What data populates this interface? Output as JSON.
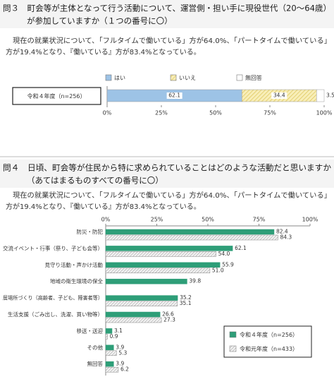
{
  "sections": [
    {
      "title_lines": [
        "問３　町会等が主体となって行う活動について、運営側・担い手に現役世代（20～64歳）",
        "が参加していますか（１つの番号に〇）"
      ],
      "text_lines": [
        "現在の就業状況について、「フルタイムで働いている」方が64.0%、「パートタイムで働いている」",
        "方が19.4%となり、『働いている』方が83.4%となっている。"
      ]
    },
    {
      "title_lines": [
        "問４　日頃、町会等が住民から特に求められていることはどのような活動だと思いますか",
        "（あてはまるものすべての番号に〇）"
      ],
      "text_lines": [
        "現在の就業状況について、「フルタイムで働いている」方が64.0%、「パートタイムで働いている」",
        "方が19.4%となり、『働いている』方が83.4%となっている。"
      ]
    }
  ],
  "chart_data": [
    {
      "type": "stacked_bar",
      "orientation": "horizontal",
      "categories": [
        "令和４年度（n=256）"
      ],
      "series": [
        {
          "name": "はい",
          "color": "#9dc3e6",
          "values": [
            62.1
          ]
        },
        {
          "name": "いいえ",
          "color": "#f3e08a",
          "pattern": "hatch",
          "values": [
            34.4
          ]
        },
        {
          "name": "無回答",
          "color": "#ffffff",
          "values": [
            3.5
          ]
        }
      ],
      "xlim": [
        0,
        100
      ],
      "xticks": [
        {
          "value": 0,
          "label": "0%"
        },
        {
          "value": 25,
          "label": "25%"
        },
        {
          "value": 50,
          "label": "50%"
        },
        {
          "value": 75,
          "label": "75%"
        },
        {
          "value": 100,
          "label": "100%"
        }
      ],
      "legend": "top"
    },
    {
      "type": "bar",
      "orientation": "horizontal",
      "categories": [
        "防災・防犯",
        "交流イベント・行事（祭り、子ども会等）",
        "見守り活動・声かけ活動",
        "地域の衛生環境の保全",
        "居場所づくり（高齢者、子ども、障害者等）",
        "生活支援（ごみ出し、洗濯、買い物等）",
        "移送・送迎",
        "その他",
        "無回答"
      ],
      "series": [
        {
          "name": "令和４年度（n=256）",
          "color": "#2e9e78",
          "values": [
            82.4,
            62.1,
            55.9,
            39.8,
            35.2,
            26.6,
            3.1,
            3.9,
            3.9
          ],
          "value_labels": [
            "82.4",
            "62.1",
            "55.9",
            "39.8",
            "35.2",
            "26.6",
            "3.1",
            "3.9",
            "3.9"
          ]
        },
        {
          "name": "令和元年度（n=433）",
          "color": "#bfbfbf",
          "pattern": "hatch",
          "values": [
            84.3,
            54.0,
            51.0,
            null,
            35.1,
            27.3,
            0.9,
            5.3,
            6.2
          ],
          "value_labels": [
            "84.3",
            "54.0",
            "51.0",
            null,
            "35.1",
            "27.3",
            "0.9",
            "5.3",
            "6.2"
          ]
        }
      ],
      "xlim": [
        0,
        100
      ],
      "xticks": [
        {
          "value": 0,
          "label": "0%"
        },
        {
          "value": 25,
          "label": "25%"
        },
        {
          "value": 50,
          "label": "50%"
        },
        {
          "value": 75,
          "label": "75%"
        },
        {
          "value": 100,
          "label": "100%"
        }
      ],
      "legend": "lower right"
    }
  ]
}
